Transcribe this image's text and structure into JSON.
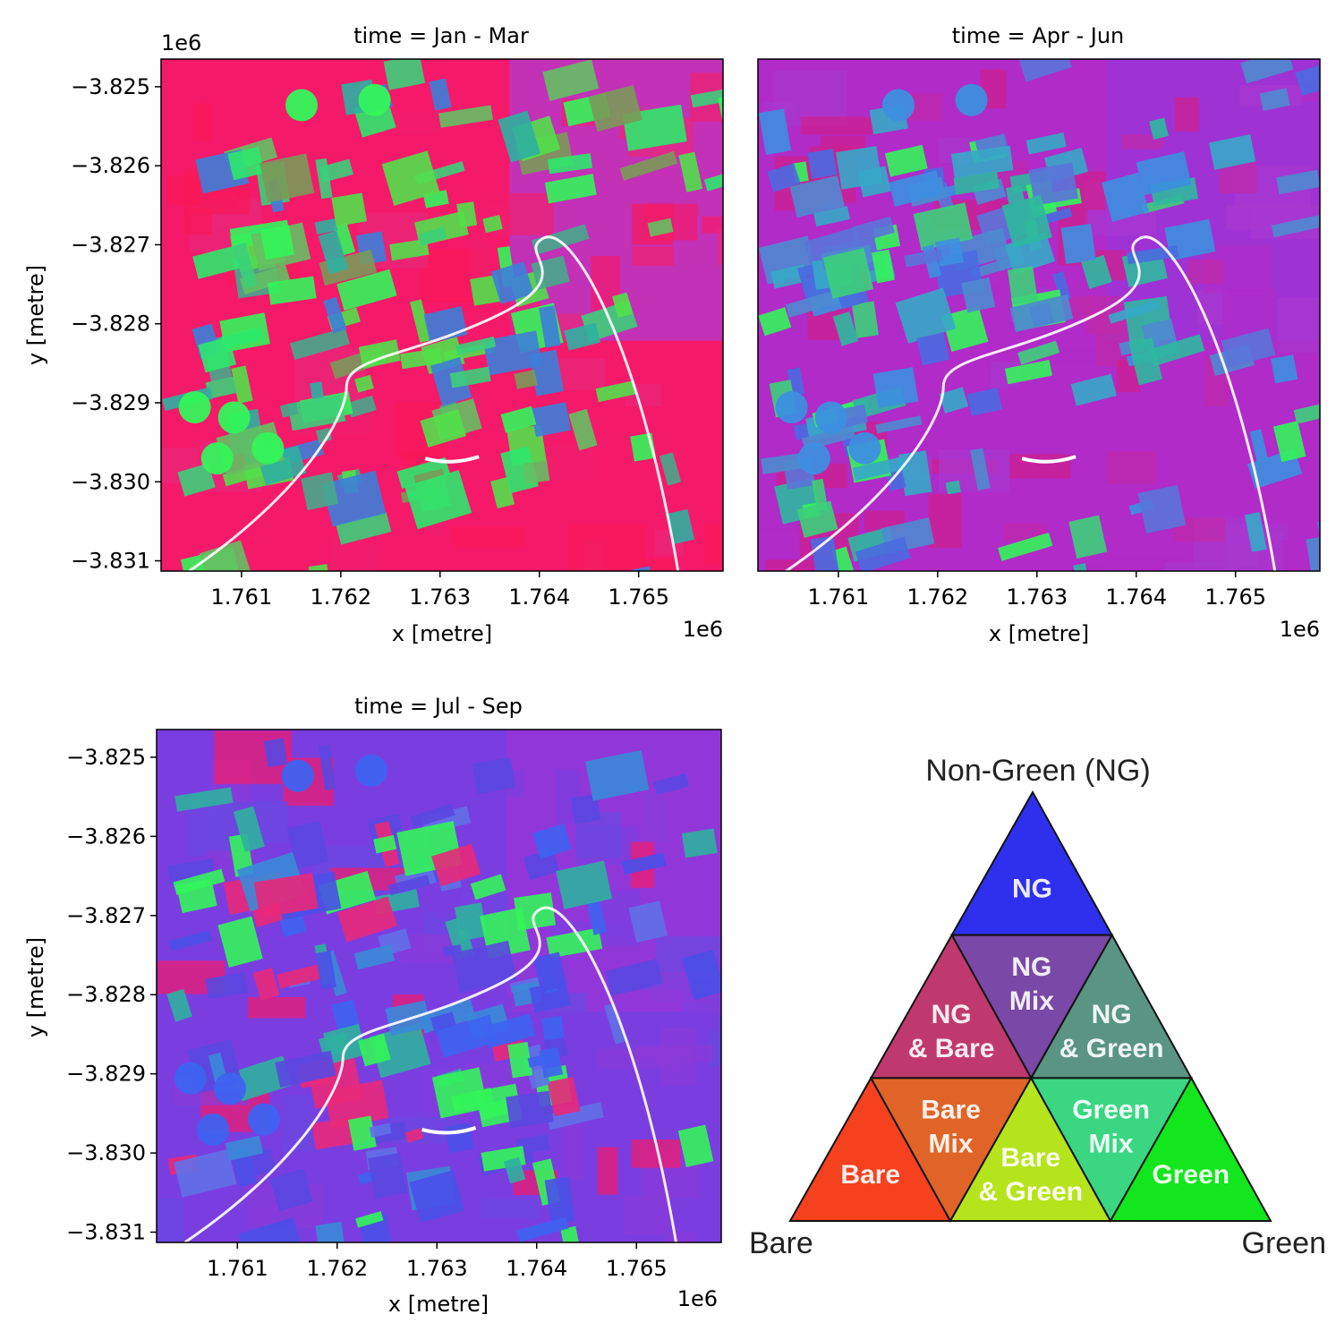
{
  "colors": {
    "background_magenta": "#f5196a",
    "background_purple": "#9a36d8",
    "field_green": "#33f55a",
    "field_teal": "#2fb0a0",
    "field_blue": "#3d63f0",
    "water_white": "#ffffff"
  },
  "chart_data": [
    {
      "type": "heatmap",
      "title": "time = Jan - Mar",
      "xlabel": "x [metre]",
      "ylabel": "y [metre]",
      "x_offset_label": "1e6",
      "y_offset_label": "1e6",
      "x_ticks": [
        "1.761",
        "1.762",
        "1.763",
        "1.764",
        "1.765"
      ],
      "y_ticks": [
        "−3.825",
        "−3.826",
        "−3.827",
        "−3.828",
        "−3.829",
        "−3.830",
        "−3.831"
      ],
      "xlim": [
        1760190,
        1765850
      ],
      "ylim": [
        -3831130,
        -3824650
      ],
      "dominant_colors": [
        "#f5196a",
        "#33f55a",
        "#2fb0a0"
      ]
    },
    {
      "type": "heatmap",
      "title": "time = Apr - Jun",
      "xlabel": "x [metre]",
      "ylabel": "",
      "x_offset_label": "1e6",
      "x_ticks": [
        "1.761",
        "1.762",
        "1.763",
        "1.764",
        "1.765"
      ],
      "y_ticks": [],
      "xlim": [
        1760190,
        1765850
      ],
      "ylim": [
        -3831130,
        -3824650
      ],
      "dominant_colors": [
        "#b02bc8",
        "#3d8fe0",
        "#33f55a"
      ]
    },
    {
      "type": "heatmap",
      "title": "time = Jul - Sep",
      "xlabel": "x [metre]",
      "ylabel": "y [metre]",
      "x_offset_label": "1e6",
      "y_offset_label": "",
      "x_ticks": [
        "1.761",
        "1.762",
        "1.763",
        "1.764",
        "1.765"
      ],
      "y_ticks": [
        "−3.825",
        "−3.826",
        "−3.827",
        "−3.828",
        "−3.829",
        "−3.830",
        "−3.831"
      ],
      "xlim": [
        1760190,
        1765850
      ],
      "ylim": [
        -3831130,
        -3824650
      ],
      "dominant_colors": [
        "#7a3ee0",
        "#3d63f0",
        "#f5196a"
      ]
    }
  ],
  "legend": {
    "top_label": "Non-Green (NG)",
    "left_label": "Bare",
    "right_label": "Green",
    "cells": [
      {
        "lines": [
          "NG"
        ],
        "color": "#2f2fee"
      },
      {
        "lines": [
          "NG",
          "Mix"
        ],
        "color": "#7a48a6"
      },
      {
        "lines": [
          "NG",
          "& Bare"
        ],
        "color": "#c0396e"
      },
      {
        "lines": [
          "NG",
          "& Green"
        ],
        "color": "#5a9482"
      },
      {
        "lines": [
          "Bare"
        ],
        "color": "#f5411e"
      },
      {
        "lines": [
          "Bare",
          "Mix"
        ],
        "color": "#e06428"
      },
      {
        "lines": [
          "Bare",
          "& Green"
        ],
        "color": "#b5e41c"
      },
      {
        "lines": [
          "Green",
          "Mix"
        ],
        "color": "#3ad682"
      },
      {
        "lines": [
          "Green"
        ],
        "color": "#12e61c"
      }
    ]
  }
}
